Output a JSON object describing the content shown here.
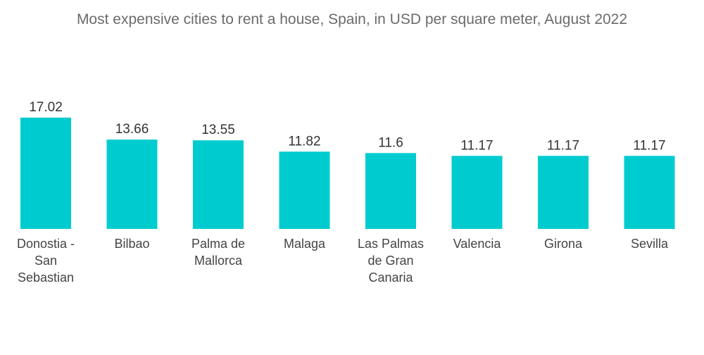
{
  "chart_data": {
    "type": "bar",
    "title": "Most expensive cities to rent a house, Spain, in USD per square meter, August 2022",
    "categories": [
      [
        "Donostia -",
        "San",
        "Sebastian"
      ],
      [
        "Bilbao"
      ],
      [
        "Palma de",
        "Mallorca"
      ],
      [
        "Malaga"
      ],
      [
        "Las Palmas",
        "de Gran",
        "Canaria"
      ],
      [
        "Valencia"
      ],
      [
        "Girona"
      ],
      [
        "Sevilla"
      ]
    ],
    "values": [
      17.02,
      13.66,
      13.55,
      11.82,
      11.6,
      11.17,
      11.17,
      11.17
    ],
    "value_labels": [
      "17.02",
      "13.66",
      "13.55",
      "11.82",
      "11.6",
      "11.17",
      "11.17",
      "11.17"
    ],
    "xlabel": "",
    "ylabel": "",
    "ylim": [
      0,
      17.02
    ],
    "bar_color": "#00cccf",
    "grid": false,
    "legend": "none"
  }
}
